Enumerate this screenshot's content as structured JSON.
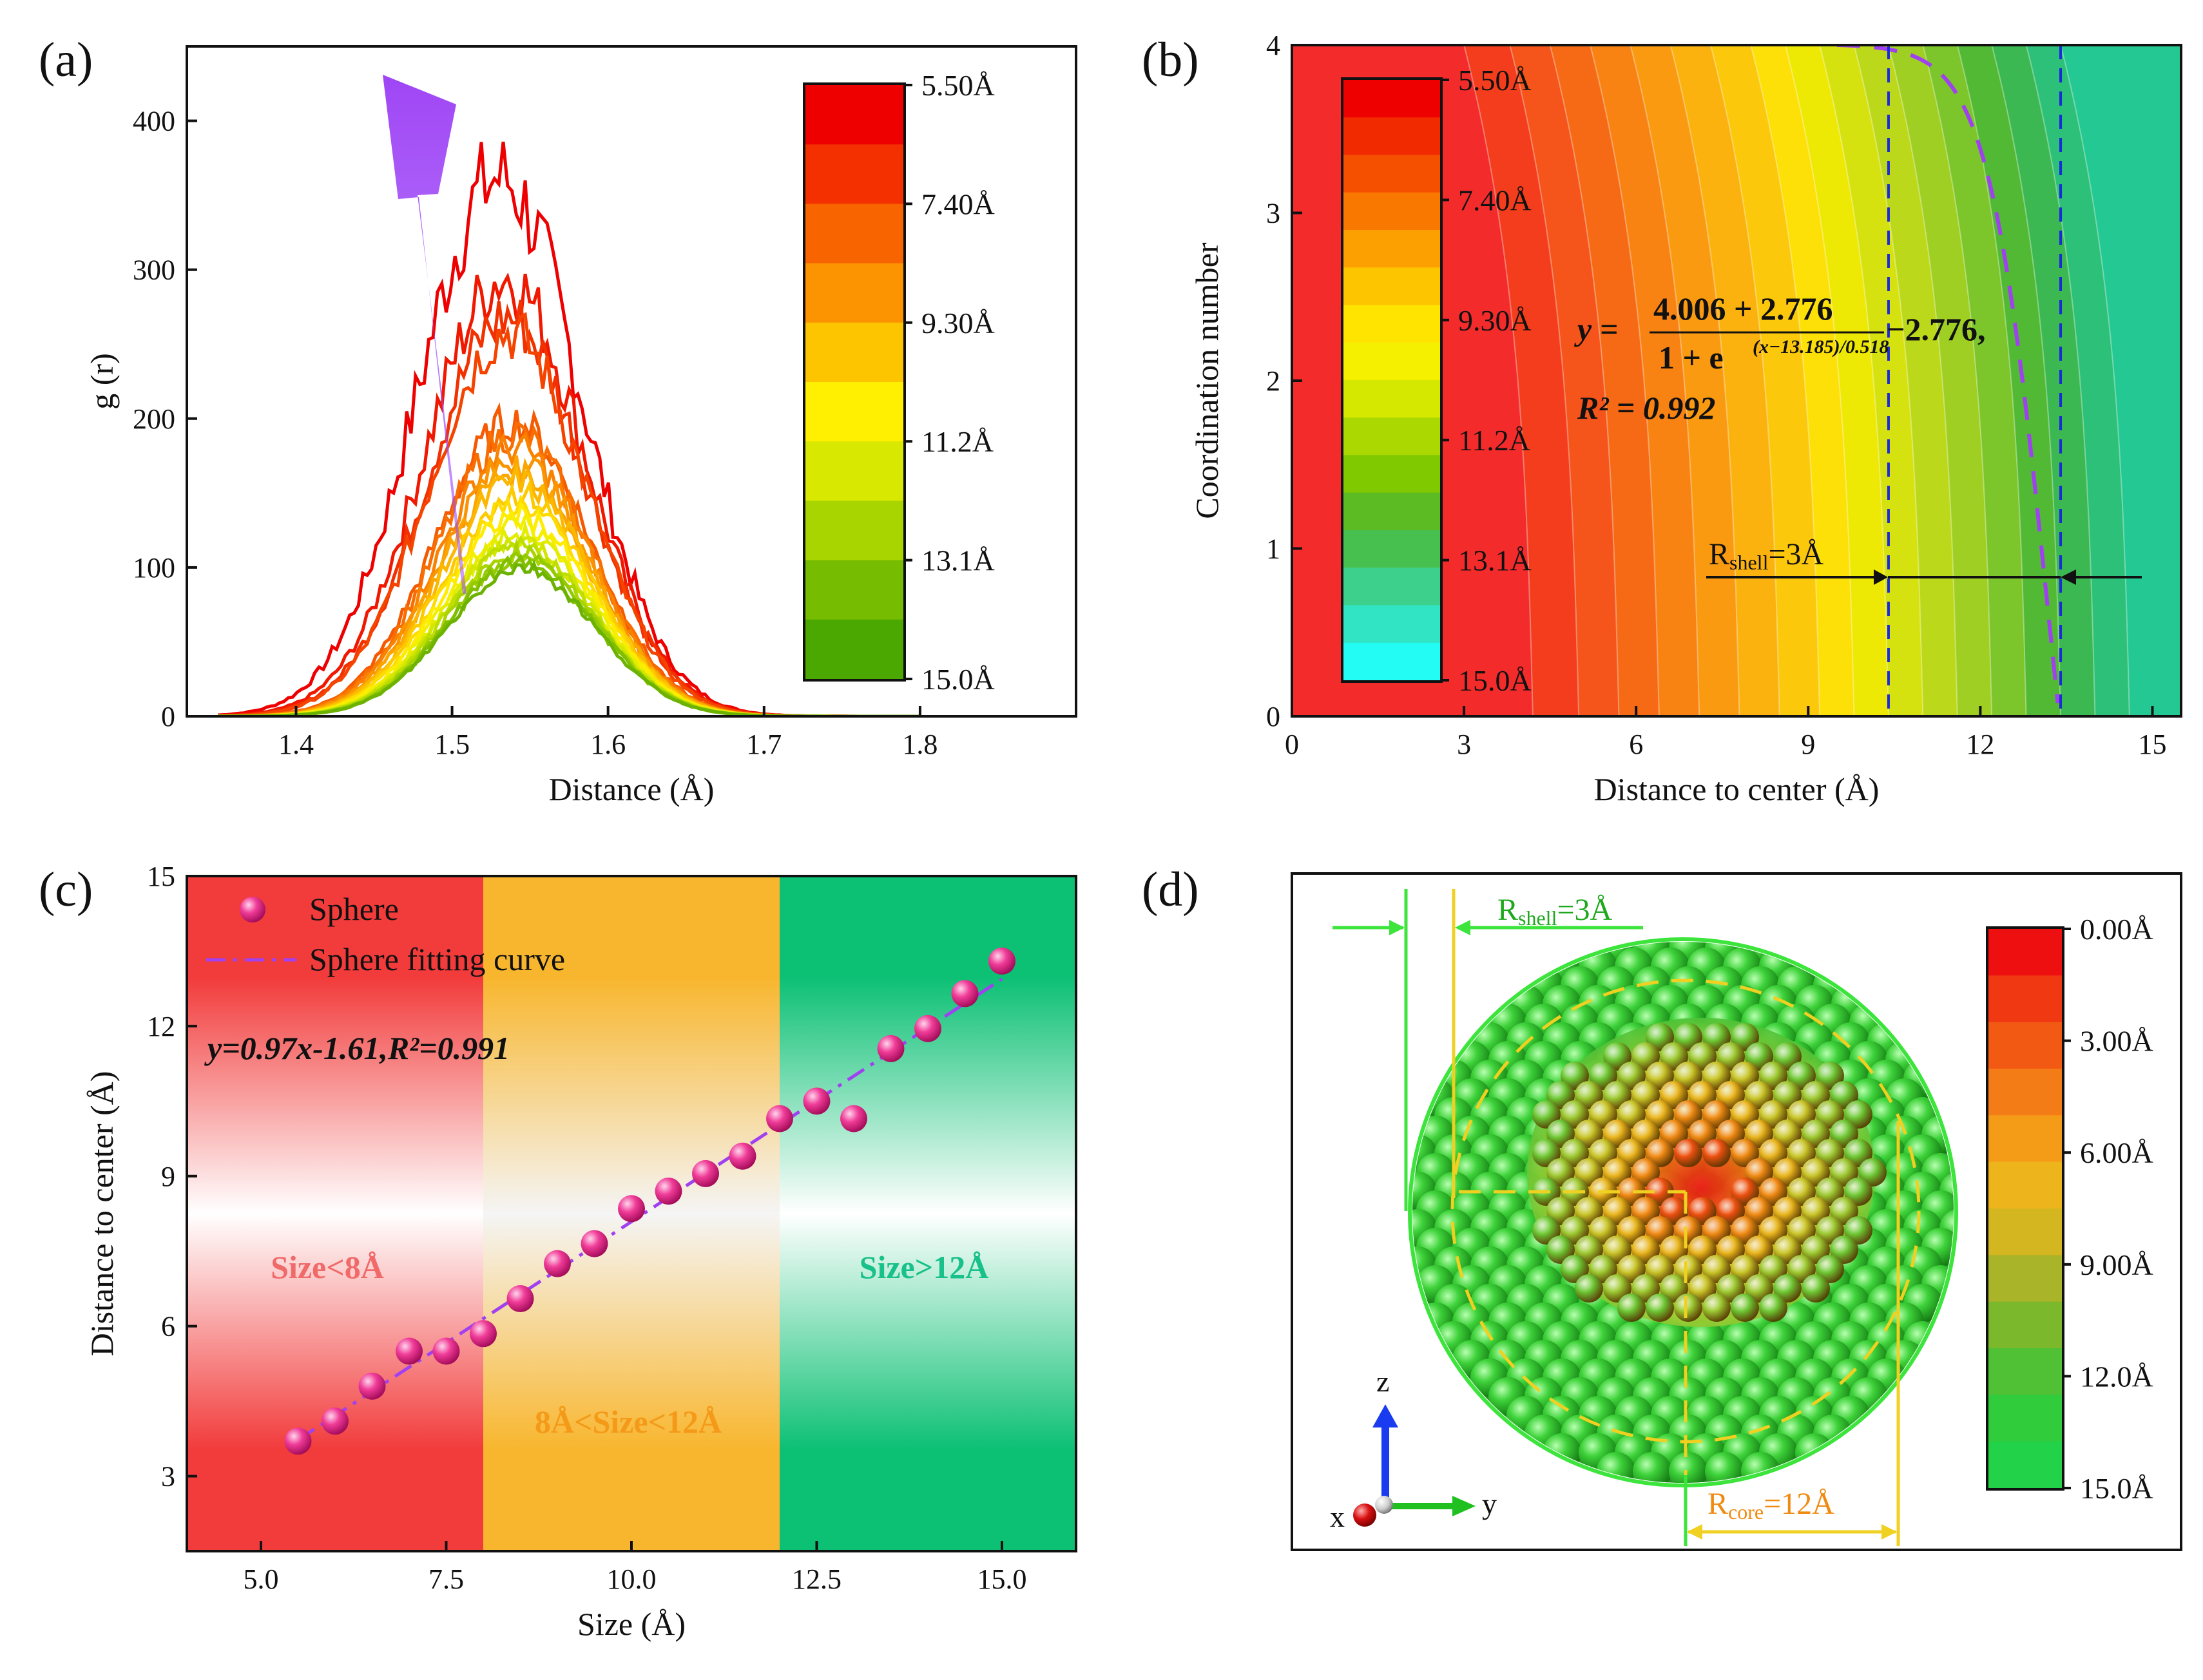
{
  "panels": {
    "a": {
      "label": "(a)"
    },
    "b": {
      "label": "(b)"
    },
    "c": {
      "label": "(c)"
    },
    "d": {
      "label": "(d)"
    }
  },
  "chart_data": [
    {
      "id": "a",
      "type": "line",
      "xlabel": "Distance (Å)",
      "ylabel": "g (r)",
      "xlim": [
        1.33,
        1.9
      ],
      "ylim": [
        0,
        450
      ],
      "xticks": [
        1.4,
        1.5,
        1.6,
        1.7,
        1.8
      ],
      "yticks": [
        0,
        100,
        200,
        300,
        400
      ],
      "peak_center": 1.55,
      "peak_width": 0.045,
      "series_peaks": [
        362,
        295,
        268,
        258,
        198,
        190,
        180,
        172,
        165,
        158,
        150,
        142,
        135,
        128,
        122,
        118,
        114,
        110,
        106,
        103,
        100
      ],
      "series_colors": [
        "#ee0000",
        "#f01800",
        "#f23000",
        "#f44400",
        "#f65a00",
        "#f86e00",
        "#f98200",
        "#fa9400",
        "#fba600",
        "#fcb800",
        "#fdca00",
        "#fedc00",
        "#ffec00",
        "#f4ef00",
        "#e4ec00",
        "#d2e600",
        "#bede00",
        "#aad400",
        "#94ca00",
        "#80be00",
        "#6cb200"
      ],
      "arrow": "purple arrow pointing toward higher peaks (smaller size)",
      "colorbar": {
        "ticks": [
          "5.50Å",
          "7.40Å",
          "9.30Å",
          "11.2Å",
          "13.1Å",
          "15.0Å"
        ],
        "colors": [
          "#ee0000",
          "#f43000",
          "#f86400",
          "#fb9400",
          "#fdc400",
          "#ffef00",
          "#d8e800",
          "#a8d400",
          "#76bc00",
          "#4aa800"
        ]
      }
    },
    {
      "id": "b",
      "type": "contour",
      "xlabel": "Distance to center (Å)",
      "ylabel": "Coordination number",
      "xlim": [
        0,
        15.5
      ],
      "ylim": [
        0,
        4
      ],
      "xticks": [
        0,
        3,
        6,
        9,
        12,
        15
      ],
      "yticks": [
        0,
        1,
        2,
        3,
        4
      ],
      "band_edges_x": [
        4.2,
        5.0,
        5.7,
        6.4,
        7.1,
        7.8,
        8.5,
        9.2,
        9.8,
        10.4,
        11.0,
        11.6,
        12.2,
        12.8,
        13.4,
        14.0,
        14.6
      ],
      "band_colors": [
        "#f32b2b",
        "#f43d1c",
        "#f5541a",
        "#f66a15",
        "#f88212",
        "#fa9a10",
        "#fbb20e",
        "#fcc80c",
        "#fde008",
        "#eee805",
        "#d6e210",
        "#bcd81a",
        "#9ecf22",
        "#7cc52b",
        "#52b934",
        "#3cb852",
        "#2cc078",
        "#24c892"
      ],
      "fit": {
        "y_label": "y =",
        "numerator": "4.006 + 2.776",
        "denominator_base": "1 + e",
        "denominator_exp": "(x−13.185)/0.518",
        "tail": "−2.776,",
        "r2": "R² = 0.992"
      },
      "fit_params": {
        "a": 4.006,
        "b": 2.776,
        "x0": 13.185,
        "dx": 0.518
      },
      "dashed_lines_x": [
        10.4,
        13.4
      ],
      "shell_label_main": "R",
      "shell_label_sub": "shell",
      "shell_label_tail": "=3Å",
      "colorbar": {
        "ticks": [
          "5.50Å",
          "7.40Å",
          "9.30Å",
          "11.2Å",
          "13.1Å",
          "15.0Å"
        ],
        "colors": [
          "#ee0000",
          "#f22a00",
          "#f55000",
          "#f87800",
          "#fba000",
          "#fdc400",
          "#ffe400",
          "#f4f000",
          "#d4e800",
          "#aad800",
          "#80c800",
          "#5cba22",
          "#48c050",
          "#3cd08c",
          "#30e4c4",
          "#22fcf4"
        ]
      }
    },
    {
      "id": "c",
      "type": "scatter",
      "xlabel": "Size (Å)",
      "ylabel": "Distance to center (Å)",
      "xlim": [
        4,
        16
      ],
      "ylim": [
        1.5,
        15
      ],
      "xticks": [
        5.0,
        7.5,
        10.0,
        12.5,
        15.0
      ],
      "xtick_labels": [
        "5.0",
        "7.5",
        "10.0",
        "12.5",
        "15.0"
      ],
      "yticks": [
        3,
        6,
        9,
        12,
        15
      ],
      "x": [
        5.5,
        6.0,
        6.5,
        7.0,
        7.5,
        8.0,
        8.5,
        9.0,
        9.5,
        10.0,
        10.5,
        11.0,
        11.5,
        12.0,
        12.5,
        13.0,
        13.5,
        14.0,
        14.5,
        15.0
      ],
      "y": [
        3.7,
        4.1,
        4.8,
        5.5,
        5.5,
        5.85,
        6.55,
        7.25,
        7.65,
        8.35,
        8.7,
        9.05,
        9.4,
        10.15,
        10.5,
        10.15,
        11.55,
        11.95,
        12.65,
        13.3
      ],
      "fit": {
        "slope": 0.97,
        "intercept": -1.61
      },
      "legend": [
        "Sphere",
        "Sphere fitting curve"
      ],
      "equation": "y=0.97x-1.61,R²=0.991",
      "regions": [
        {
          "from": 4,
          "to": 8,
          "label": "Size<8Å",
          "color": "#f23b3b",
          "text_color": "#f06a6a"
        },
        {
          "from": 8,
          "to": 12,
          "label": "8Å<Size<12Å",
          "color": "#f8b62e",
          "text_color": "#f49a18"
        },
        {
          "from": 12,
          "to": 16,
          "label": "Size>12Å",
          "color": "#0cc074",
          "text_color": "#18c08a"
        }
      ]
    }
  ],
  "panel_d": {
    "shell_label_main": "R",
    "shell_label_sub": "shell",
    "shell_label_tail": "=3Å",
    "core_label_main": "R",
    "core_label_sub": "core",
    "core_label_tail": "=12Å",
    "axes": {
      "z": "z",
      "x": "x",
      "y": "y"
    },
    "colorbar": {
      "ticks": [
        "0.00Å",
        "3.00Å",
        "6.00Å",
        "9.00Å",
        "12.0Å",
        "15.0Å"
      ],
      "colors": [
        "#ee1010",
        "#f03812",
        "#f25a14",
        "#f47c16",
        "#f49c18",
        "#eeb41c",
        "#d4b620",
        "#aab428",
        "#7cb82c",
        "#50c034",
        "#30cc3c",
        "#22d248"
      ]
    }
  }
}
